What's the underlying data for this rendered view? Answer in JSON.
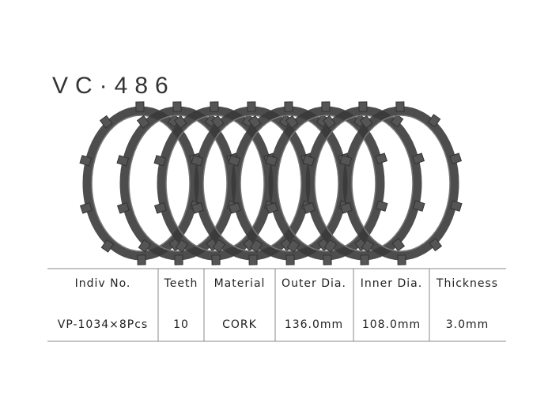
{
  "title": "VC·486",
  "table": {
    "headers": [
      "Indiv No.",
      "Teeth",
      "Material",
      "Outer Dia.",
      "Inner Dia.",
      "Thickness"
    ],
    "rows": [
      [
        "VP-1034×8Pcs",
        "10",
        "CORK",
        "136.0mm",
        "108.0mm",
        "3.0mm"
      ]
    ]
  }
}
